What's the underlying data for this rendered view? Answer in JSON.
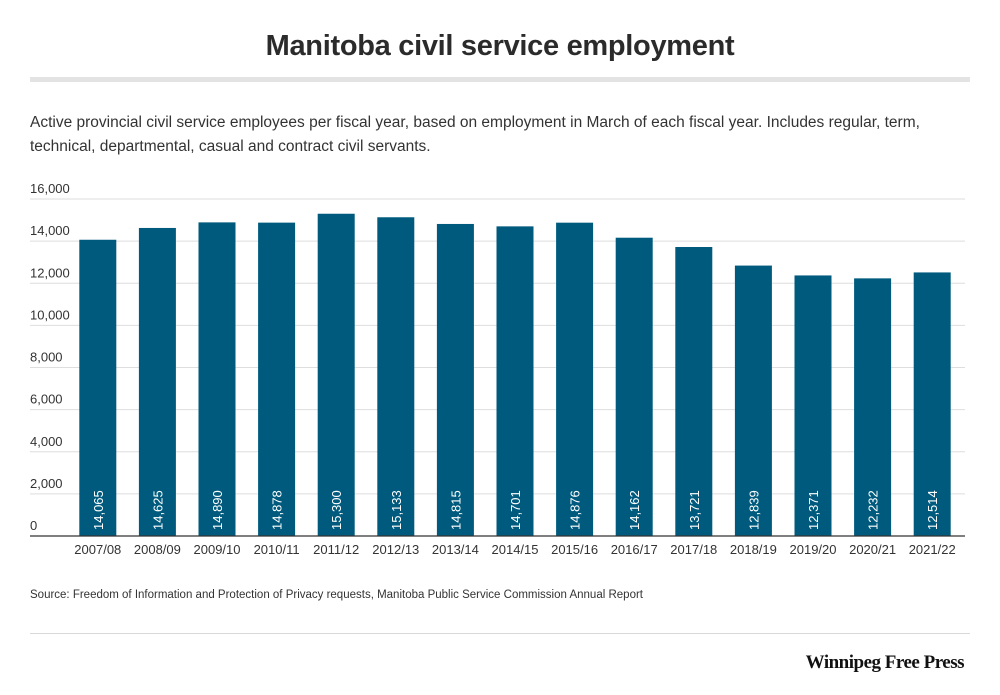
{
  "title": "Manitoba civil service employment",
  "subtitle": "Active provincial civil service employees per fiscal year, based on employment in March of each fiscal year.  Includes regular, term, technical, departmental, casual and contract civil servants.",
  "source": "Source: Freedom of Information and Protection of Privacy requests,  Manitoba Public Service Commission Annual Report",
  "brand": "Winnipeg Free Press",
  "colors": {
    "bar": "#005a7d",
    "grid": "#dedede",
    "axis": "#333333",
    "title_rule": "#e3e3e3"
  },
  "chart_data": {
    "type": "bar",
    "title": "Manitoba civil service employment",
    "xlabel": "",
    "ylabel": "",
    "ylim": [
      0,
      16000
    ],
    "yticks": [
      0,
      2000,
      4000,
      6000,
      8000,
      10000,
      12000,
      14000,
      16000
    ],
    "ytick_labels": [
      "0",
      "2,000",
      "4,000",
      "6,000",
      "8,000",
      "10,000",
      "12,000",
      "14,000",
      "16,000"
    ],
    "grid": true,
    "categories": [
      "2007/08",
      "2008/09",
      "2009/10",
      "2010/11",
      "2011/12",
      "2012/13",
      "2013/14",
      "2014/15",
      "2015/16",
      "2016/17",
      "2017/18",
      "2018/19",
      "2019/20",
      "2020/21",
      "2021/22"
    ],
    "values": [
      14065,
      14625,
      14890,
      14878,
      15300,
      15133,
      14815,
      14701,
      14876,
      14162,
      13721,
      12839,
      12371,
      12232,
      12514
    ],
    "value_labels": [
      "14,065",
      "14,625",
      "14,890",
      "14,878",
      "15,300",
      "15,133",
      "14,815",
      "14,701",
      "14,876",
      "14,162",
      "13,721",
      "12,839",
      "12,371",
      "12,232",
      "12,514"
    ]
  }
}
